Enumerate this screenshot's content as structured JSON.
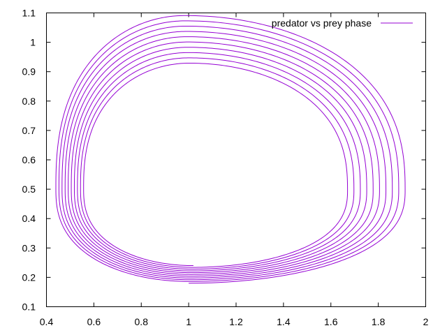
{
  "chart_data": {
    "type": "line",
    "title": "",
    "xlabel": "",
    "ylabel": "",
    "xlim": [
      0.4,
      2.0
    ],
    "ylim": [
      0.1,
      1.1
    ],
    "xticks": [
      0.4,
      0.6,
      0.8,
      1.0,
      1.2,
      1.4,
      1.6,
      1.8,
      2.0
    ],
    "xtick_labels": [
      "0.4",
      "0.6",
      "0.8",
      "1",
      "1.2",
      "1.4",
      "1.6",
      "1.8",
      "2"
    ],
    "yticks": [
      0.1,
      0.2,
      0.3,
      0.4,
      0.5,
      0.6,
      0.7,
      0.8,
      0.9,
      1.0,
      1.1
    ],
    "ytick_labels": [
      "0.1",
      "0.2",
      "0.3",
      "0.4",
      "0.5",
      "0.6",
      "0.7",
      "0.8",
      "0.9",
      "1",
      "1.1"
    ],
    "grid": false,
    "legend_position": "top-right",
    "series": [
      {
        "name": "predator vs prey phase",
        "color": "#9400d3",
        "description": "inward spiral of nested closed-like orbits",
        "outer_orbit": {
          "x_min": 0.43,
          "x_max": 1.92,
          "y_min": 0.18,
          "y_max": 1.1,
          "y_at_extremes": 0.5,
          "x_at_top": 0.98,
          "x_at_bottom": 1.0
        },
        "inner_orbit": {
          "x_min": 0.56,
          "x_max": 1.65,
          "y_min": 0.24,
          "y_max": 0.92,
          "y_at_extremes": 0.5,
          "x_at_top": 1.0,
          "x_at_bottom": 1.02
        },
        "loops": 10,
        "start_point": [
          0.85,
          0.18
        ],
        "end_point": [
          0.9,
          0.9
        ]
      }
    ]
  }
}
